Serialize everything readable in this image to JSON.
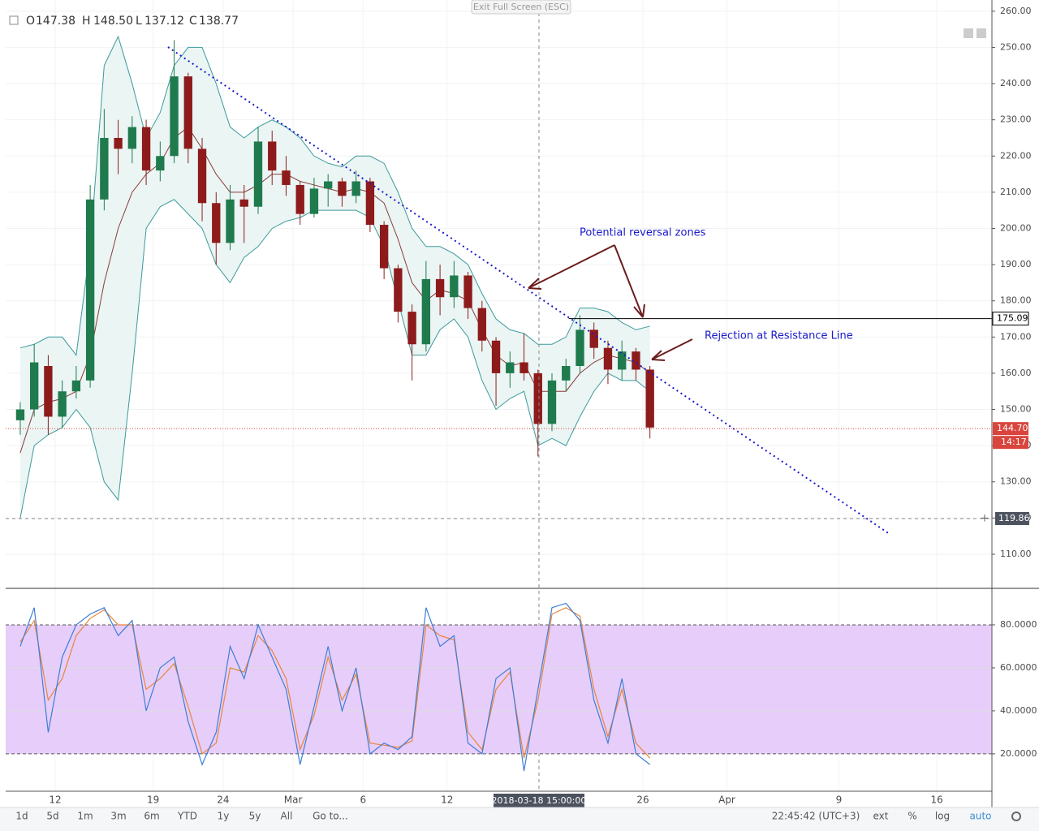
{
  "chart_data": [
    {
      "type": "candlestick",
      "header": [
        {
          "name": "O",
          "value": "147.38"
        },
        {
          "name": "H",
          "value": "148.50"
        },
        {
          "name": "L",
          "value": "137.12"
        },
        {
          "name": "C",
          "value": "138.77"
        }
      ],
      "x": [
        9.5,
        10.5,
        11.5,
        12.5,
        13.5,
        14.5,
        15.5,
        16.5,
        17.5,
        18.5,
        19.5,
        20.5,
        21.5,
        22.5,
        23.5,
        24.5,
        25.5,
        26.5,
        27.5,
        28.5,
        29.5,
        30.5,
        31.5,
        32.5,
        33.5,
        34.5,
        35.5,
        36.5,
        37.5,
        38.5,
        39.5,
        40.5,
        41.5,
        42.5,
        43.5,
        44.5,
        45.5,
        46.5,
        47.5,
        48.5,
        49.5,
        50.5,
        51.5,
        52.5,
        53.5,
        54.5
      ],
      "open": [
        147,
        150,
        162,
        148,
        155,
        158,
        208,
        225,
        222,
        228,
        216,
        220,
        242,
        222,
        207,
        196,
        208,
        206,
        224,
        216,
        212,
        204,
        211,
        213,
        209,
        213,
        201,
        189,
        177,
        168,
        186,
        181,
        187,
        178,
        169,
        160,
        163,
        160,
        146,
        158,
        162,
        172,
        167,
        161,
        166,
        161
      ],
      "high": [
        152,
        168,
        165,
        158,
        162,
        212,
        233,
        230,
        231,
        230,
        224,
        252,
        243,
        225,
        210,
        212,
        212,
        228,
        227,
        220,
        213,
        214,
        215,
        214,
        216,
        214,
        202,
        190,
        179,
        191,
        190,
        191,
        188,
        180,
        170,
        166,
        171,
        161,
        160,
        164,
        176,
        174,
        169,
        169,
        167,
        162
      ],
      "low": [
        143,
        148,
        143,
        145,
        153,
        156,
        205,
        215,
        218,
        212,
        213,
        218,
        218,
        202,
        190,
        194,
        196,
        204,
        212,
        209,
        201,
        203,
        206,
        206,
        207,
        199,
        186,
        174,
        158,
        166,
        176,
        178,
        175,
        166,
        151,
        156,
        158,
        137,
        144,
        155,
        160,
        164,
        157,
        158,
        158,
        142
      ],
      "close": [
        150,
        163,
        148,
        155,
        158,
        208,
        225,
        222,
        228,
        216,
        220,
        242,
        222,
        207,
        196,
        208,
        206,
        224,
        216,
        212,
        204,
        211,
        213,
        209,
        213,
        201,
        189,
        177,
        168,
        186,
        181,
        187,
        178,
        169,
        160,
        163,
        160,
        146,
        158,
        162,
        172,
        167,
        161,
        166,
        161,
        145
      ],
      "up_color": "#1f7a4d",
      "down_color": "#8e1b1b",
      "bollinger": {
        "upper": [
          167,
          168,
          170,
          170,
          165,
          195,
          245,
          253,
          240,
          225,
          232,
          245,
          250,
          250,
          240,
          228,
          225,
          228,
          230,
          228,
          225,
          220,
          218,
          217,
          220,
          220,
          218,
          210,
          200,
          195,
          195,
          193,
          190,
          182,
          175,
          172,
          171,
          168,
          168,
          170,
          178,
          178,
          177,
          174,
          172,
          173
        ],
        "middle": [
          138,
          150,
          152,
          153,
          155,
          165,
          185,
          200,
          210,
          215,
          218,
          225,
          228,
          222,
          215,
          210,
          210,
          212,
          215,
          215,
          213,
          212,
          211,
          210,
          211,
          210,
          207,
          197,
          185,
          180,
          183,
          182,
          180,
          172,
          165,
          162,
          163,
          155,
          155,
          155,
          160,
          163,
          165,
          164,
          163,
          160
        ],
        "lower": [
          120,
          140,
          143,
          145,
          150,
          145,
          130,
          125,
          160,
          200,
          206,
          208,
          204,
          200,
          190,
          185,
          192,
          195,
          200,
          202,
          203,
          205,
          205,
          205,
          205,
          203,
          195,
          180,
          165,
          165,
          172,
          175,
          170,
          158,
          150,
          153,
          155,
          140,
          142,
          140,
          148,
          155,
          160,
          158,
          158,
          155
        ],
        "color": "#3d9a9a",
        "fill": "#eaf5f4",
        "middle_color": "#8b3a3a"
      },
      "xlim": [
        8.46,
        78.94
      ],
      "ylim": [
        100.8,
        263.1
      ],
      "xticks": [
        12,
        19,
        24,
        {
          "value": 29,
          "label": "Mar"
        },
        {
          "value": 34,
          "label": "6"
        },
        {
          "value": 40,
          "label": "12"
        },
        {
          "value": 54,
          "label": "26"
        },
        {
          "value": 60,
          "label": "Apr"
        },
        {
          "value": 68,
          "label": "9"
        },
        {
          "value": 75,
          "label": "16"
        }
      ],
      "yticks": [
        {
          "value": 110,
          "label": "110.00"
        },
        {
          "value": 120,
          "label": "120.00"
        },
        {
          "value": 130,
          "label": "130.00"
        },
        {
          "value": 140,
          "label": "140.00"
        },
        {
          "value": 150,
          "label": "150.00"
        },
        {
          "value": 160,
          "label": "160.00"
        },
        {
          "value": 170,
          "label": "170.00"
        },
        {
          "value": 180,
          "label": "180.00"
        },
        {
          "value": 190,
          "label": "190.00"
        },
        {
          "value": 200,
          "label": "200.00"
        },
        {
          "value": 210,
          "label": "210.00"
        },
        {
          "value": 220,
          "label": "220.00"
        },
        {
          "value": 230,
          "label": "230.00"
        },
        {
          "value": 240,
          "label": "240.00"
        },
        {
          "value": 250,
          "label": "250.00"
        },
        {
          "value": 260,
          "label": "260.00"
        }
      ],
      "grid": true,
      "trendline": {
        "x": [
          20.06,
          71.7
        ],
        "y": [
          250.1,
          115.4
        ],
        "color": "#1a1acc"
      },
      "level": {
        "value": 175.09,
        "from": 48.7,
        "color": "#000000"
      },
      "last_price": {
        "value": 144.7,
        "label": "144.70",
        "countdown": "14:17",
        "color": "#d9453d"
      },
      "crosshair": {
        "x": 46.57,
        "x_label": "2018-03-18 15:00:00",
        "y": 119.86
      },
      "annotations": [
        "Potential reversal zones",
        "Rejection at Resistance Line"
      ]
    },
    {
      "type": "line",
      "x": [
        9.5,
        10.5,
        11.5,
        12.5,
        13.5,
        14.5,
        15.5,
        16.5,
        17.5,
        18.5,
        19.5,
        20.5,
        21.5,
        22.5,
        23.5,
        24.5,
        25.5,
        26.5,
        27.5,
        28.5,
        29.5,
        30.5,
        31.5,
        32.5,
        33.5,
        34.5,
        35.5,
        36.5,
        37.5,
        38.5,
        39.5,
        40.5,
        41.5,
        42.5,
        43.5,
        44.5,
        45.5,
        46.5,
        47.5,
        48.5,
        49.5,
        50.5,
        51.5,
        52.5,
        53.5,
        54.5
      ],
      "series": [
        {
          "color": "#3d7fd6",
          "values": [
            70,
            88,
            30,
            65,
            80,
            85,
            88,
            75,
            82,
            40,
            60,
            65,
            35,
            15,
            30,
            70,
            55,
            80,
            65,
            50,
            15,
            42,
            70,
            40,
            60,
            20,
            25,
            22,
            28,
            88,
            70,
            75,
            25,
            20,
            55,
            60,
            12,
            50,
            88,
            90,
            82,
            45,
            25,
            55,
            20,
            15
          ]
        },
        {
          "color": "#e8853a",
          "values": [
            72,
            82,
            45,
            55,
            75,
            83,
            87,
            80,
            80,
            50,
            55,
            62,
            42,
            20,
            25,
            60,
            58,
            75,
            68,
            55,
            22,
            38,
            65,
            45,
            57,
            25,
            24,
            23,
            26,
            80,
            75,
            73,
            30,
            22,
            50,
            58,
            18,
            45,
            85,
            88,
            84,
            50,
            28,
            50,
            25,
            18
          ]
        }
      ],
      "band": [
        20,
        80
      ],
      "band_color": "#e7cdfa",
      "xlim": [
        8.46,
        78.94
      ],
      "ylim": [
        2.6,
        96.6
      ],
      "yticks": [
        {
          "value": 20,
          "label": "20.0000"
        },
        {
          "value": 40,
          "label": "40.0000"
        },
        {
          "value": 60,
          "label": "60.0000"
        },
        {
          "value": 80,
          "label": "80.0000"
        }
      ]
    }
  ],
  "ui": {
    "exit_fullscreen": "Exit Full Screen (ESC)",
    "ranges": [
      "1d",
      "5d",
      "1m",
      "3m",
      "6m",
      "YTD",
      "1y",
      "5y",
      "All"
    ],
    "goto": "Go to...",
    "clock": "22:45:42 (UTC+3)",
    "options": [
      "ext",
      "%",
      "log",
      "auto"
    ]
  }
}
